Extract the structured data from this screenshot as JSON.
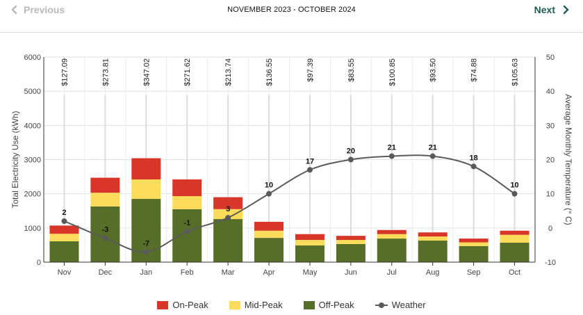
{
  "header": {
    "prev_label": "Previous",
    "next_label": "Next",
    "period_title": "NOVEMBER 2023 - OCTOBER 2024"
  },
  "colors": {
    "on_peak": "#d9362a",
    "mid_peak": "#fddc5c",
    "off_peak": "#566e28",
    "weather": "#5a5a5a",
    "nav_accent": "#1f5c55"
  },
  "chart_data": {
    "type": "bar",
    "stacked": true,
    "categories": [
      "Nov",
      "Dec",
      "Jan",
      "Feb",
      "Mar",
      "Apr",
      "May",
      "Jun",
      "Jul",
      "Aug",
      "Sep",
      "Oct"
    ],
    "series": [
      {
        "name": "Off-Peak",
        "values": [
          610,
          1630,
          1850,
          1550,
          1260,
          710,
          490,
          530,
          690,
          630,
          470,
          570
        ]
      },
      {
        "name": "Mid-Peak",
        "values": [
          220,
          400,
          570,
          380,
          290,
          210,
          160,
          120,
          130,
          120,
          110,
          230
        ]
      },
      {
        "name": "On-Peak",
        "values": [
          240,
          440,
          620,
          490,
          350,
          260,
          170,
          120,
          120,
          120,
          110,
          120
        ]
      }
    ],
    "cost_labels": [
      "$127.09",
      "$273.81",
      "$347.02",
      "$271.62",
      "$213.74",
      "$136.55",
      "$97.39",
      "$83.55",
      "$100.85",
      "$93.50",
      "$74.88",
      "$105.63"
    ],
    "weather": {
      "name": "Weather",
      "values": [
        2,
        -3,
        -7,
        -1,
        3,
        10,
        17,
        20,
        21,
        21,
        18,
        10
      ]
    },
    "ylabel": "Total Electricity Use (kWh)",
    "ylim": [
      0,
      6000
    ],
    "yticks": [
      0,
      1000,
      2000,
      3000,
      4000,
      5000,
      6000
    ],
    "y2label": "Average Monthly Temperature (° C)",
    "y2lim": [
      -10,
      50
    ],
    "y2ticks": [
      -10,
      0,
      10,
      20,
      30,
      40,
      50
    ],
    "legend_position": "bottom-center",
    "grid": true
  }
}
